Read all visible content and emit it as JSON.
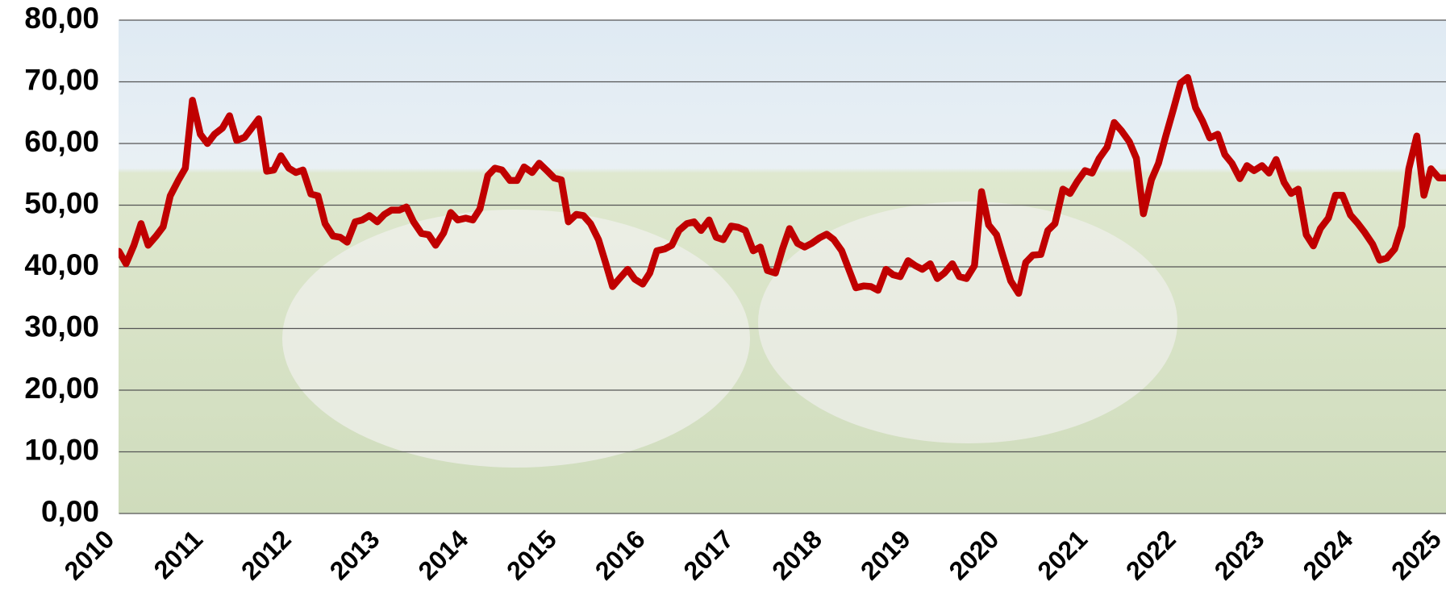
{
  "chart_data": {
    "type": "line",
    "x": [
      2010,
      2010.08,
      2010.17,
      2010.25,
      2010.33,
      2010.42,
      2010.5,
      2010.58,
      2010.67,
      2010.75,
      2010.83,
      2010.92,
      2011,
      2011.08,
      2011.17,
      2011.25,
      2011.33,
      2011.42,
      2011.5,
      2011.58,
      2011.67,
      2011.75,
      2011.83,
      2011.92,
      2012,
      2012.08,
      2012.17,
      2012.25,
      2012.33,
      2012.42,
      2012.5,
      2012.58,
      2012.67,
      2012.75,
      2012.83,
      2012.92,
      2013,
      2013.08,
      2013.17,
      2013.25,
      2013.33,
      2013.42,
      2013.5,
      2013.58,
      2013.67,
      2013.75,
      2013.83,
      2013.92,
      2014,
      2014.08,
      2014.17,
      2014.25,
      2014.33,
      2014.42,
      2014.5,
      2014.58,
      2014.67,
      2014.75,
      2014.83,
      2014.92,
      2015,
      2015.08,
      2015.17,
      2015.25,
      2015.33,
      2015.42,
      2015.5,
      2015.58,
      2015.67,
      2015.75,
      2015.83,
      2015.92,
      2016,
      2016.08,
      2016.17,
      2016.25,
      2016.33,
      2016.42,
      2016.5,
      2016.58,
      2016.67,
      2016.75,
      2016.83,
      2016.92,
      2017,
      2017.08,
      2017.17,
      2017.25,
      2017.33,
      2017.42,
      2017.5,
      2017.58,
      2017.67,
      2017.75,
      2017.83,
      2017.92,
      2018,
      2018.08,
      2018.17,
      2018.25,
      2018.33,
      2018.42,
      2018.5,
      2018.58,
      2018.67,
      2018.75,
      2018.83,
      2018.92,
      2019,
      2019.08,
      2019.17,
      2019.25,
      2019.33,
      2019.42,
      2019.5,
      2019.58,
      2019.67,
      2019.75,
      2019.83,
      2019.92,
      2020,
      2020.08,
      2020.17,
      2020.25,
      2020.33,
      2020.42,
      2020.5,
      2020.58,
      2020.67,
      2020.75,
      2020.83,
      2020.92,
      2021,
      2021.08,
      2021.17,
      2021.25,
      2021.33,
      2021.42,
      2021.5,
      2021.58,
      2021.67,
      2021.75,
      2021.83,
      2021.92,
      2022,
      2022.08,
      2022.17,
      2022.25,
      2022.33,
      2022.42,
      2022.5,
      2022.58,
      2022.67,
      2022.75,
      2022.83,
      2022.92,
      2023,
      2023.08,
      2023.17,
      2023.25,
      2023.33,
      2023.42,
      2023.5,
      2023.58,
      2023.67,
      2023.75,
      2023.83,
      2023.92,
      2024,
      2024.08,
      2024.17,
      2024.25,
      2024.33,
      2024.42,
      2024.5,
      2024.58,
      2024.67,
      2024.75,
      2024.83,
      2024.92,
      2025
    ],
    "series": [
      {
        "color": "#c00000",
        "values": [
          42.5,
          40.5,
          43.5,
          47,
          43.5,
          45,
          46.5,
          51.5,
          54,
          56,
          67,
          61.5,
          60,
          61.5,
          62.5,
          64.5,
          60.5,
          61,
          62.5,
          64,
          55.5,
          55.7,
          58,
          56,
          55.3,
          55.7,
          51.8,
          51.5,
          47,
          45,
          44.8,
          44,
          47.3,
          47.6,
          48.3,
          47.3,
          48.5,
          49.2,
          49.2,
          49.7,
          47.3,
          45.4,
          45.2,
          43.5,
          45.5,
          48.8,
          47.6,
          47.9,
          47.6,
          49.4,
          54.8,
          56,
          55.7,
          54,
          54,
          56.2,
          55.3,
          56.8,
          55.7,
          54.4,
          54.1,
          47.3,
          48.5,
          48.3,
          47,
          44.4,
          40.7,
          36.8,
          38.3,
          39.6,
          38,
          37.2,
          39,
          42.6,
          42.9,
          43.5,
          45.9,
          47,
          47.3,
          45.9,
          47.6,
          44.8,
          44.4,
          46.6,
          46.4,
          45.9,
          42.6,
          43.2,
          39.4,
          39,
          42.9,
          46.2,
          43.8,
          43.2,
          43.8,
          44.7,
          45.3,
          44.4,
          42.6,
          39.6,
          36.6,
          36.9,
          36.8,
          36.2,
          39.6,
          38.7,
          38.4,
          41,
          40.2,
          39.6,
          40.5,
          38.1,
          39,
          40.5,
          38.4,
          38.1,
          40.2,
          52.2,
          46.8,
          45.2,
          41.4,
          37.7,
          35.7,
          40.7,
          41.9,
          42,
          45.9,
          47,
          52.6,
          51.9,
          53.8,
          55.6,
          55.2,
          57.6,
          59.4,
          63.4,
          62.1,
          60.3,
          57.6,
          48.6,
          54.1,
          56.8,
          61.1,
          65.6,
          69.8,
          70.7,
          65.8,
          63.6,
          60.9,
          61.5,
          58.2,
          56.8,
          54.3,
          56.4,
          55.6,
          56.4,
          55.2,
          57.4,
          53.7,
          51.9,
          52.6,
          45.2,
          43.4,
          46.2,
          47.9,
          51.6,
          51.6,
          48.4,
          47.1,
          45.6,
          43.7,
          41.1,
          41.4,
          42.9,
          46.6,
          55.9,
          61.2,
          51.6,
          55.9,
          54.4,
          54.4
        ]
      }
    ],
    "xlim": [
      2010,
      2025
    ],
    "xticks": [
      2010,
      2011,
      2012,
      2013,
      2014,
      2015,
      2016,
      2017,
      2018,
      2019,
      2020,
      2021,
      2022,
      2023,
      2024,
      2025
    ],
    "ylim": [
      0,
      80
    ],
    "yticks": [
      {
        "value": 0,
        "label": "0,00"
      },
      {
        "value": 10,
        "label": "10,00"
      },
      {
        "value": 20,
        "label": "20,00"
      },
      {
        "value": 30,
        "label": "30,00"
      },
      {
        "value": 40,
        "label": "40,00"
      },
      {
        "value": 50,
        "label": "50,00"
      },
      {
        "value": 60,
        "label": "60,00"
      },
      {
        "value": 70,
        "label": "70,00"
      },
      {
        "value": 80,
        "label": "80,00"
      }
    ],
    "grid": true
  }
}
